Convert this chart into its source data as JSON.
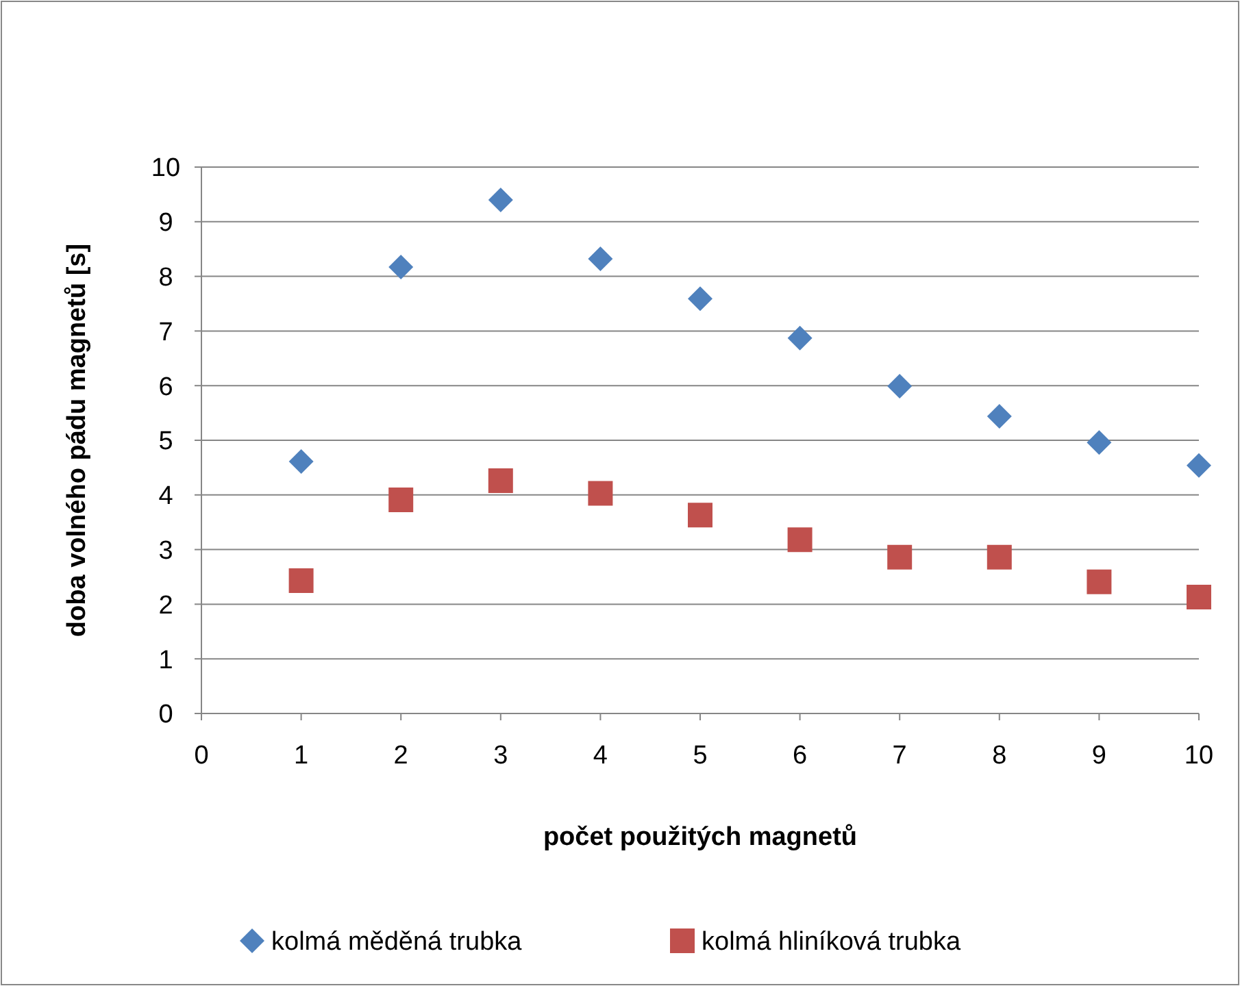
{
  "chart_data": {
    "type": "scatter",
    "xlabel": "počet použitých magnetů",
    "ylabel": "doba volného pádu magnetů [s]",
    "x": [
      1,
      2,
      3,
      4,
      5,
      6,
      7,
      8,
      9,
      10
    ],
    "series": [
      {
        "name": "kolmá měděná trubka",
        "color": "#4f81bd",
        "marker": "diamond",
        "values": [
          4.61,
          8.17,
          9.4,
          8.32,
          7.59,
          6.87,
          5.99,
          5.44,
          4.96,
          4.54
        ]
      },
      {
        "name": "kolmá hliníková trubka",
        "color": "#c0504d",
        "marker": "square",
        "values": [
          2.43,
          3.91,
          4.26,
          4.03,
          3.63,
          3.18,
          2.86,
          2.86,
          2.41,
          2.13
        ]
      }
    ],
    "xlim": [
      0,
      10
    ],
    "xticks": [
      0,
      1,
      2,
      3,
      4,
      5,
      6,
      7,
      8,
      9,
      10
    ],
    "ylim": [
      0,
      10
    ],
    "yticks": [
      0,
      1,
      2,
      3,
      4,
      5,
      6,
      7,
      8,
      9,
      10
    ],
    "grid": "y",
    "legend": "bottom"
  }
}
